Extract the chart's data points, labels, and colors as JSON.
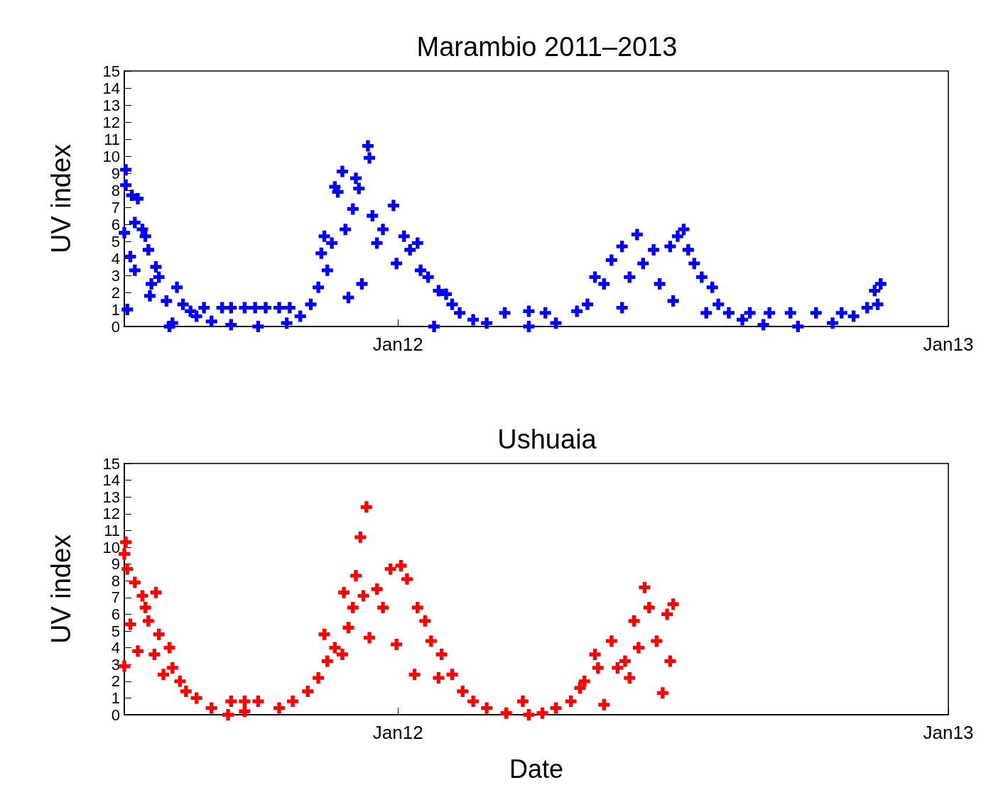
{
  "chart_data": [
    {
      "type": "scatter",
      "title": "Marambio 2011–2013",
      "ylabel": "UV index",
      "marker": "cross",
      "xlim": [
        "2011-07-03",
        "2013-01-01"
      ],
      "xticks": [
        {
          "value": "2012-01-01",
          "label": "Jan12"
        },
        {
          "value": "2013-01-01",
          "label": "Jan13"
        }
      ],
      "ylim": [
        0,
        15
      ],
      "yticks": [
        0,
        1,
        2,
        3,
        4,
        5,
        6,
        7,
        8,
        9,
        10,
        11,
        12,
        13,
        14,
        15
      ],
      "series": [
        {
          "color": "#0000ff",
          "x": [
            "2011-07-04",
            "2011-07-04",
            "2011-07-05",
            "2011-07-03",
            "2011-07-08",
            "2011-07-10",
            "2011-07-07",
            "2011-07-10",
            "2011-07-12",
            "2011-07-15",
            "2011-07-17",
            "2011-07-19",
            "2011-07-21",
            "2011-07-24",
            "2011-07-20",
            "2011-07-26",
            "2011-07-31",
            "2011-08-02",
            "2011-08-04",
            "2011-08-07",
            "2011-08-11",
            "2011-08-16",
            "2011-08-20",
            "2011-08-30",
            "2011-08-25",
            "2011-09-06",
            "2011-09-12",
            "2011-09-21",
            "2011-09-28",
            "2011-10-05",
            "2011-10-14",
            "2011-10-21",
            "2011-09-12",
            "2011-09-30",
            "2011-10-19",
            "2011-10-28",
            "2011-11-04",
            "2011-11-09",
            "2011-11-11",
            "2011-11-13",
            "2011-11-15",
            "2011-11-18",
            "2011-11-20",
            "2011-11-25",
            "2011-11-22",
            "2011-11-27",
            "2011-11-29",
            "2011-12-02",
            "2011-12-04",
            "2011-12-06",
            "2011-12-12",
            "2011-12-13",
            "2011-12-15",
            "2011-12-08",
            "2011-12-18",
            "2011-12-22",
            "2011-12-29",
            "2011-12-31",
            "2012-01-05",
            "2012-01-09",
            "2012-01-14",
            "2012-01-16",
            "2012-01-21",
            "2012-01-25",
            "2012-01-28",
            "2012-02-02",
            "2012-02-06",
            "2012-02-11",
            "2012-02-20",
            "2012-02-29",
            "2012-03-12",
            "2012-03-28",
            "2012-04-08",
            "2012-03-28",
            "2012-04-15",
            "2012-04-29",
            "2012-05-06",
            "2012-05-11",
            "2012-05-17",
            "2012-05-22",
            "2012-05-29",
            "2012-05-29",
            "2012-06-03",
            "2012-06-08",
            "2012-06-12",
            "2012-06-19",
            "2012-06-23",
            "2012-06-30",
            "2012-07-02",
            "2012-07-05",
            "2012-07-09",
            "2012-07-12",
            "2012-07-16",
            "2012-07-21",
            "2012-07-24",
            "2012-07-28",
            "2012-08-01",
            "2012-08-08",
            "2012-08-17",
            "2012-08-22",
            "2012-09-04",
            "2012-09-18",
            "2012-10-05",
            "2012-10-22",
            "2012-08-31",
            "2012-09-23",
            "2012-10-16",
            "2012-10-30",
            "2012-11-08",
            "2012-11-13",
            "2012-11-17",
            "2012-11-15"
          ],
          "values": [
            9.2,
            8.3,
            1.0,
            5.5,
            7.7,
            6.1,
            4.1,
            3.3,
            7.5,
            5.7,
            5.3,
            4.5,
            2.5,
            3.5,
            1.8,
            2.9,
            1.5,
            0,
            0.2,
            2.3,
            1.3,
            0.9,
            0.6,
            0.3,
            1.1,
            1.1,
            1.1,
            1.1,
            1.1,
            1.1,
            1.1,
            1.1,
            0.1,
            0,
            0.2,
            0.6,
            1.3,
            2.3,
            4.3,
            5.3,
            3.3,
            4.9,
            8.2,
            9.1,
            7.9,
            5.7,
            1.7,
            6.9,
            8.7,
            8.1,
            10.6,
            9.9,
            6.5,
            2.5,
            4.9,
            5.7,
            7.1,
            3.7,
            5.3,
            4.5,
            4.9,
            3.3,
            2.9,
            0,
            2.1,
            1.9,
            1.3,
            0.8,
            0.4,
            0.2,
            0.8,
            0.9,
            0.8,
            0,
            0.2,
            0.9,
            1.3,
            2.9,
            2.5,
            3.9,
            4.7,
            1.1,
            2.9,
            5.4,
            3.7,
            4.5,
            2.5,
            4.7,
            1.5,
            5.3,
            5.7,
            4.5,
            3.7,
            2.9,
            0.8,
            2.3,
            1.3,
            0.8,
            0.4,
            0.8,
            0.8,
            0.8,
            0.8,
            0.8,
            0.1,
            0,
            0.2,
            0.6,
            1.1,
            2.1,
            2.5,
            1.3
          ]
        }
      ]
    },
    {
      "type": "scatter",
      "title": "Ushuaia",
      "ylabel": "UV index",
      "xlabel": "Date",
      "marker": "cross",
      "xlim": [
        "2011-07-03",
        "2013-01-01"
      ],
      "xticks": [
        {
          "value": "2012-01-01",
          "label": "Jan12"
        },
        {
          "value": "2013-01-01",
          "label": "Jan13"
        }
      ],
      "ylim": [
        0,
        15
      ],
      "yticks": [
        0,
        1,
        2,
        3,
        4,
        5,
        6,
        7,
        8,
        9,
        10,
        11,
        12,
        13,
        14,
        15
      ],
      "series": [
        {
          "color": "#ff0000",
          "x": [
            "2011-07-04",
            "2011-07-03",
            "2011-07-03",
            "2011-07-05",
            "2011-07-07",
            "2011-07-10",
            "2011-07-12",
            "2011-07-15",
            "2011-07-17",
            "2011-07-19",
            "2011-07-23",
            "2011-07-24",
            "2011-07-26",
            "2011-07-29",
            "2011-08-02",
            "2011-08-04",
            "2011-08-09",
            "2011-08-13",
            "2011-08-20",
            "2011-08-30",
            "2011-09-10",
            "2011-09-12",
            "2011-09-21",
            "2011-09-30",
            "2011-09-21",
            "2011-10-14",
            "2011-10-23",
            "2011-11-02",
            "2011-11-09",
            "2011-11-13",
            "2011-11-15",
            "2011-11-20",
            "2011-11-25",
            "2011-11-26",
            "2011-11-29",
            "2011-12-02",
            "2011-12-04",
            "2011-12-07",
            "2011-12-11",
            "2011-12-09",
            "2011-12-13",
            "2011-12-18",
            "2011-12-22",
            "2011-12-27",
            "2011-12-31",
            "2012-01-03",
            "2012-01-07",
            "2012-01-12",
            "2012-01-14",
            "2012-01-19",
            "2012-01-23",
            "2012-01-28",
            "2012-01-30",
            "2012-02-06",
            "2012-02-13",
            "2012-02-20",
            "2012-02-29",
            "2012-03-13",
            "2012-03-24",
            "2012-03-28",
            "2012-04-06",
            "2012-04-15",
            "2012-04-25",
            "2012-05-01",
            "2012-05-04",
            "2012-05-11",
            "2012-05-13",
            "2012-05-17",
            "2012-05-22",
            "2012-05-26",
            "2012-05-31",
            "2012-06-03",
            "2012-06-06",
            "2012-06-09",
            "2012-06-13",
            "2012-06-16",
            "2012-06-21",
            "2012-06-25",
            "2012-06-28",
            "2012-06-30",
            "2012-07-02"
          ],
          "values": [
            10.3,
            9.6,
            2.9,
            8.7,
            5.4,
            7.9,
            3.8,
            7.1,
            6.4,
            5.6,
            3.6,
            7.3,
            4.8,
            2.4,
            4.0,
            2.8,
            2.0,
            1.4,
            1.0,
            0.4,
            0,
            0.8,
            0.8,
            0.8,
            0.2,
            0.4,
            0.8,
            1.4,
            2.2,
            4.8,
            3.2,
            4.0,
            3.6,
            7.3,
            5.2,
            6.4,
            8.3,
            10.6,
            12.4,
            7.1,
            4.6,
            7.5,
            6.4,
            8.7,
            4.2,
            8.9,
            8.1,
            2.4,
            6.4,
            5.6,
            4.4,
            2.2,
            3.6,
            2.4,
            1.4,
            0.8,
            0.4,
            0.1,
            0.8,
            0,
            0.1,
            0.4,
            0.8,
            1.6,
            2.0,
            3.6,
            2.8,
            0.6,
            4.4,
            2.8,
            3.2,
            2.2,
            5.6,
            4.0,
            7.6,
            6.4,
            4.4,
            1.3,
            6.0,
            3.2,
            6.6
          ]
        }
      ]
    }
  ]
}
